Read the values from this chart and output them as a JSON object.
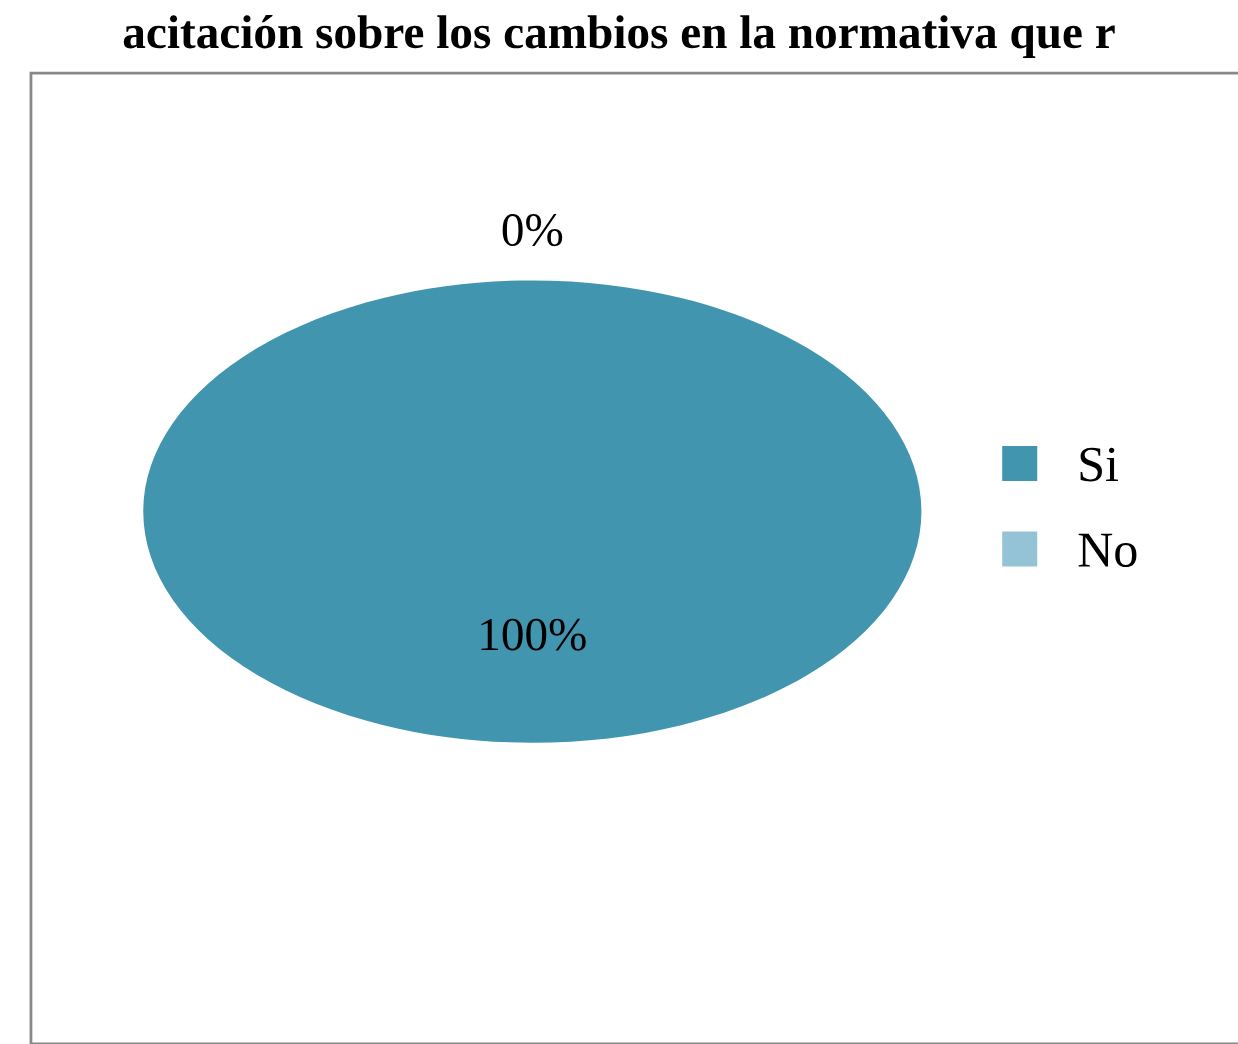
{
  "chart_data": {
    "type": "pie",
    "title": "acitación sobre los cambios en la normativa que r",
    "categories": [
      "Si",
      "No"
    ],
    "values": [
      100,
      0
    ],
    "colors": [
      "#4195ae",
      "#93c3d4"
    ],
    "value_labels": [
      "100%",
      "0%"
    ],
    "legend": "right"
  }
}
